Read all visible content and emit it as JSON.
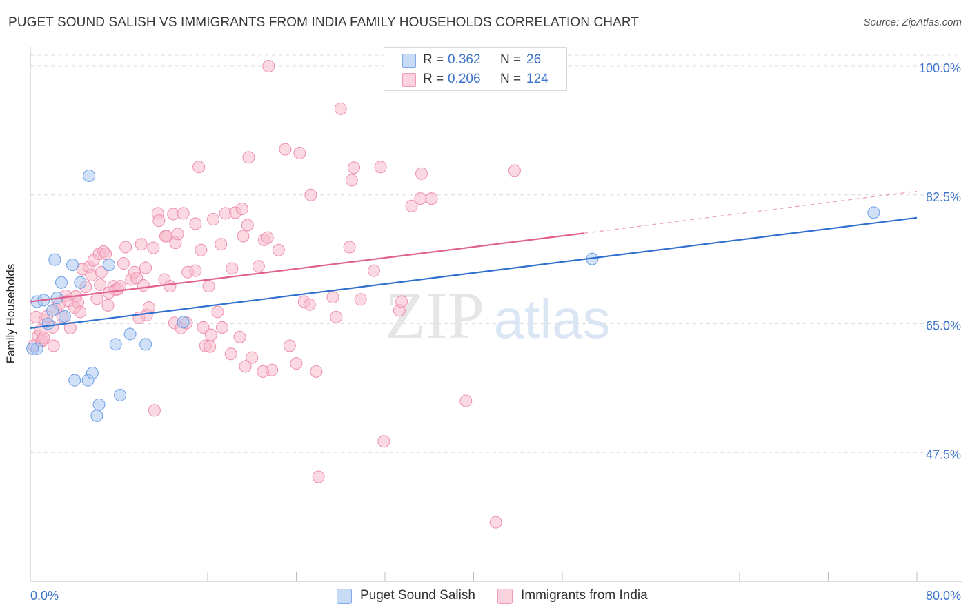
{
  "header": {
    "title": "PUGET SOUND SALISH VS IMMIGRANTS FROM INDIA FAMILY HOUSEHOLDS CORRELATION CHART",
    "source": "Source: ZipAtlas.com"
  },
  "watermark": {
    "zip": "ZIP",
    "atlas": "atlas"
  },
  "legend": {
    "rows": [
      {
        "r_label": "R =",
        "r_value": "0.362",
        "n_label": "N =",
        "n_value": "26",
        "color": "#a9c7f0"
      },
      {
        "r_label": "R =",
        "r_value": "0.206",
        "n_label": "N =",
        "n_value": "124",
        "color": "#f7b9cc"
      }
    ]
  },
  "bottom_legend": {
    "items": [
      {
        "label": "Puget Sound Salish",
        "color": "#a9c7f0"
      },
      {
        "label": "Immigrants from India",
        "color": "#f7b9cc"
      }
    ]
  },
  "chart_data": {
    "type": "scatter",
    "title": "PUGET SOUND SALISH VS IMMIGRANTS FROM INDIA FAMILY HOUSEHOLDS CORRELATION CHART",
    "xlabel": "",
    "ylabel": "Family Households",
    "xlim": [
      0,
      80
    ],
    "ylim": [
      30,
      101.5
    ],
    "x_tick_labels": [
      "0.0%",
      "80.0%"
    ],
    "y_ticks": [
      47.5,
      65.0,
      82.5,
      100.0
    ],
    "y_tick_labels": [
      "47.5%",
      "65.0%",
      "82.5%",
      "100.0%"
    ],
    "grid": true,
    "legend_position": "top-center",
    "series": [
      {
        "name": "Puget Sound Salish",
        "color": "#6a9ee6",
        "fill": "#a9c7f0",
        "line_color": "#2f6fcf",
        "trend": {
          "x": [
            0,
            80
          ],
          "y": [
            64.4,
            79.4
          ]
        },
        "points": [
          [
            0.6,
            61.6
          ],
          [
            0.6,
            68.0
          ],
          [
            1.2,
            68.2
          ],
          [
            1.6,
            65.0
          ],
          [
            2.0,
            66.8
          ],
          [
            2.2,
            73.7
          ],
          [
            2.4,
            68.5
          ],
          [
            2.8,
            70.6
          ],
          [
            3.1,
            66.0
          ],
          [
            3.8,
            73.0
          ],
          [
            4.0,
            57.3
          ],
          [
            4.5,
            70.6
          ],
          [
            5.2,
            57.3
          ],
          [
            5.3,
            85.1
          ],
          [
            5.6,
            58.3
          ],
          [
            6.0,
            52.5
          ],
          [
            6.2,
            54.0
          ],
          [
            7.1,
            73.0
          ],
          [
            7.7,
            62.2
          ],
          [
            8.1,
            55.3
          ],
          [
            9.0,
            63.6
          ],
          [
            10.4,
            62.2
          ],
          [
            13.8,
            65.2
          ],
          [
            50.7,
            73.8
          ],
          [
            76.1,
            80.1
          ],
          [
            0.2,
            61.6
          ]
        ]
      },
      {
        "name": "Immigrants from India",
        "color": "#ee8fae",
        "fill": "#f7b9cc",
        "line_color": "#e0608f",
        "trend": {
          "x": [
            0,
            50.0
          ],
          "y": [
            68.0,
            77.3
          ]
        },
        "trend_dashed": {
          "x": [
            50.0,
            80
          ],
          "y": [
            77.3,
            83.0
          ]
        },
        "points": [
          [
            0.3,
            62.0
          ],
          [
            0.5,
            65.9
          ],
          [
            0.7,
            63.3
          ],
          [
            0.9,
            64.1
          ],
          [
            1.0,
            62.6
          ],
          [
            1.1,
            62.8
          ],
          [
            1.2,
            63.1
          ],
          [
            1.3,
            65.5
          ],
          [
            1.5,
            66.0
          ],
          [
            2.0,
            64.5
          ],
          [
            2.1,
            62.0
          ],
          [
            2.3,
            67.0
          ],
          [
            2.6,
            67.6
          ],
          [
            2.9,
            65.9
          ],
          [
            3.2,
            68.8
          ],
          [
            3.4,
            68.1
          ],
          [
            3.6,
            64.4
          ],
          [
            4.0,
            67.2
          ],
          [
            4.1,
            68.7
          ],
          [
            4.3,
            67.9
          ],
          [
            4.5,
            66.6
          ],
          [
            4.7,
            72.4
          ],
          [
            5.0,
            70.0
          ],
          [
            5.3,
            72.7
          ],
          [
            5.5,
            71.6
          ],
          [
            5.7,
            73.6
          ],
          [
            6.0,
            68.4
          ],
          [
            6.2,
            74.5
          ],
          [
            6.3,
            70.3
          ],
          [
            6.4,
            72.0
          ],
          [
            6.6,
            74.8
          ],
          [
            6.8,
            74.5
          ],
          [
            7.0,
            67.5
          ],
          [
            7.1,
            69.2
          ],
          [
            7.5,
            70.1
          ],
          [
            7.7,
            69.6
          ],
          [
            7.9,
            69.7
          ],
          [
            8.1,
            70.1
          ],
          [
            8.4,
            73.2
          ],
          [
            8.6,
            75.4
          ],
          [
            9.1,
            71.0
          ],
          [
            9.4,
            72.0
          ],
          [
            9.6,
            71.2
          ],
          [
            9.8,
            65.8
          ],
          [
            10.0,
            75.8
          ],
          [
            10.2,
            70.2
          ],
          [
            10.4,
            72.6
          ],
          [
            10.5,
            66.2
          ],
          [
            10.7,
            67.2
          ],
          [
            11.1,
            75.3
          ],
          [
            11.2,
            53.2
          ],
          [
            11.5,
            80.0
          ],
          [
            11.6,
            79.0
          ],
          [
            12.1,
            71.0
          ],
          [
            12.2,
            76.9
          ],
          [
            12.3,
            76.9
          ],
          [
            12.6,
            70.1
          ],
          [
            12.9,
            79.9
          ],
          [
            13.0,
            65.1
          ],
          [
            13.1,
            76.0
          ],
          [
            13.3,
            77.2
          ],
          [
            13.6,
            64.4
          ],
          [
            13.8,
            80.0
          ],
          [
            14.1,
            65.1
          ],
          [
            14.2,
            72.0
          ],
          [
            14.9,
            78.6
          ],
          [
            14.9,
            72.2
          ],
          [
            15.2,
            86.3
          ],
          [
            15.4,
            75.0
          ],
          [
            15.6,
            64.5
          ],
          [
            15.8,
            62.0
          ],
          [
            16.1,
            70.1
          ],
          [
            16.2,
            61.9
          ],
          [
            16.3,
            63.5
          ],
          [
            16.5,
            79.2
          ],
          [
            16.9,
            66.6
          ],
          [
            17.2,
            75.8
          ],
          [
            17.3,
            64.5
          ],
          [
            17.6,
            80.0
          ],
          [
            18.1,
            60.9
          ],
          [
            18.2,
            72.5
          ],
          [
            18.5,
            80.1
          ],
          [
            18.9,
            63.2
          ],
          [
            19.1,
            80.6
          ],
          [
            19.2,
            76.9
          ],
          [
            19.4,
            59.2
          ],
          [
            19.6,
            78.4
          ],
          [
            19.7,
            87.6
          ],
          [
            20.0,
            60.4
          ],
          [
            20.6,
            72.8
          ],
          [
            21.0,
            58.5
          ],
          [
            21.1,
            76.4
          ],
          [
            21.4,
            76.7
          ],
          [
            21.5,
            100.0
          ],
          [
            21.8,
            58.7
          ],
          [
            22.4,
            75.0
          ],
          [
            23.0,
            88.7
          ],
          [
            23.4,
            62.0
          ],
          [
            24.0,
            59.6
          ],
          [
            24.3,
            88.2
          ],
          [
            24.7,
            68.0
          ],
          [
            25.2,
            67.6
          ],
          [
            25.3,
            82.5
          ],
          [
            25.8,
            58.5
          ],
          [
            26.0,
            44.2
          ],
          [
            27.3,
            68.6
          ],
          [
            27.6,
            65.9
          ],
          [
            28.0,
            94.2
          ],
          [
            28.8,
            75.4
          ],
          [
            29.0,
            84.5
          ],
          [
            29.2,
            86.2
          ],
          [
            29.8,
            68.3
          ],
          [
            31.0,
            72.2
          ],
          [
            31.6,
            86.3
          ],
          [
            31.9,
            49.0
          ],
          [
            33.3,
            66.8
          ],
          [
            33.5,
            68.0
          ],
          [
            34.4,
            81.0
          ],
          [
            35.2,
            82.0
          ],
          [
            35.3,
            85.4
          ],
          [
            36.2,
            82.0
          ],
          [
            39.3,
            54.5
          ],
          [
            42.0,
            38.0
          ],
          [
            43.7,
            85.8
          ]
        ]
      }
    ]
  }
}
